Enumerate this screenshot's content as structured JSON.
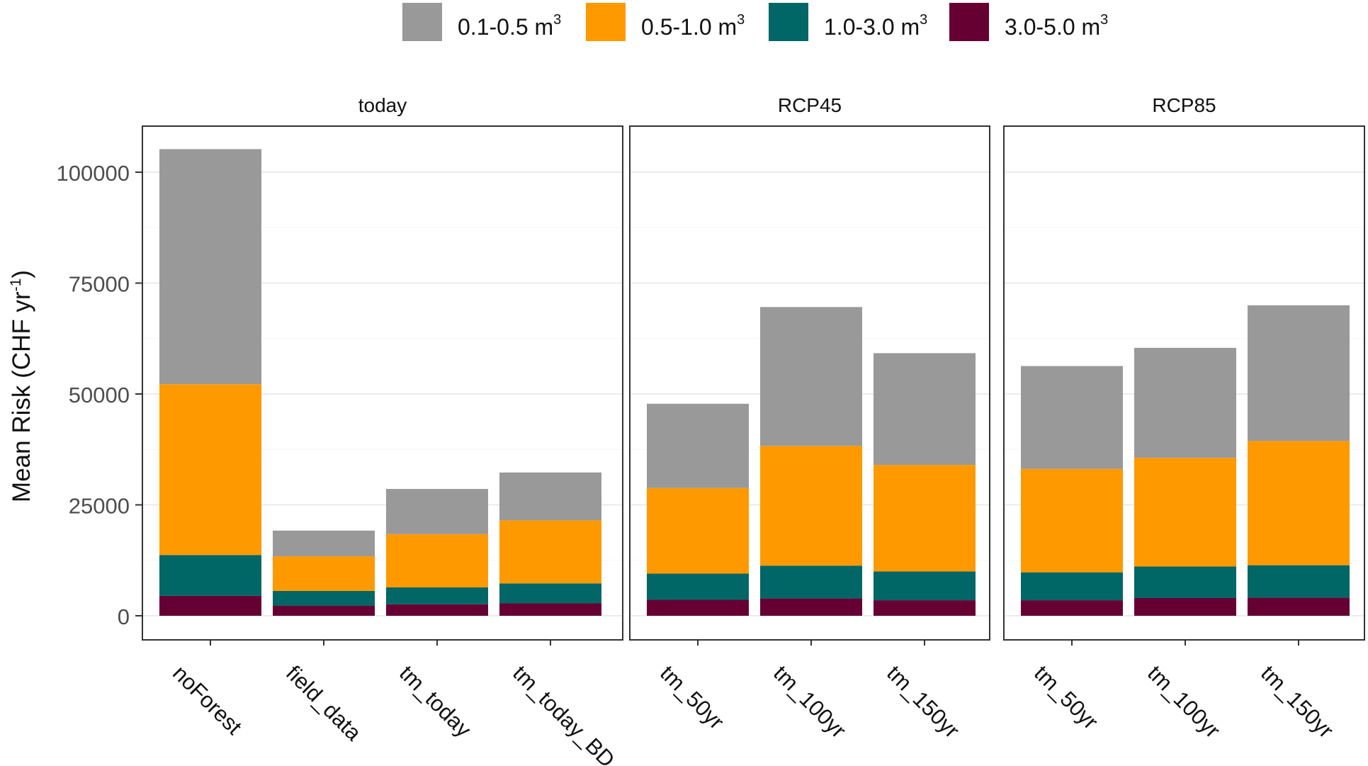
{
  "chart_data": {
    "type": "bar",
    "stacked": true,
    "ylabel": "Mean Risk (CHF yr",
    "ylabel_sup": "-1",
    "ylabel_close": ")",
    "ylim": [
      0,
      110000
    ],
    "yticks": [
      0,
      25000,
      50000,
      75000,
      100000
    ],
    "legend": {
      "position": "top",
      "unit_sup": "3",
      "items": [
        {
          "name": "0.1-0.5 m",
          "color": "#999999"
        },
        {
          "name": "0.5-1.0 m",
          "color": "#FF9900"
        },
        {
          "name": "1.0-3.0 m",
          "color": "#006666"
        },
        {
          "name": "3.0-5.0 m",
          "color": "#660033"
        }
      ]
    },
    "stack_order_bottom_to_top": [
      "3.0-5.0 m",
      "1.0-3.0 m",
      "0.5-1.0 m",
      "0.1-0.5 m"
    ],
    "panels": [
      {
        "title": "today",
        "categories": [
          "noForest",
          "field_data",
          "tm_today",
          "tm_today_BD"
        ],
        "series": [
          {
            "name": "3.0-5.0 m",
            "values": [
              4500,
              2300,
              2600,
              2800
            ]
          },
          {
            "name": "1.0-3.0 m",
            "values": [
              9200,
              3300,
              3800,
              4500
            ]
          },
          {
            "name": "0.5-1.0 m",
            "values": [
              38500,
              7800,
              12000,
              14200
            ]
          },
          {
            "name": "0.1-0.5 m",
            "values": [
              53000,
              5800,
              10200,
              10800
            ]
          }
        ]
      },
      {
        "title": "RCP45",
        "categories": [
          "tm_50yr",
          "tm_100yr",
          "tm_150yr"
        ],
        "series": [
          {
            "name": "3.0-5.0 m",
            "values": [
              3600,
              3900,
              3500
            ]
          },
          {
            "name": "1.0-3.0 m",
            "values": [
              5900,
              7400,
              6500
            ]
          },
          {
            "name": "0.5-1.0 m",
            "values": [
              19300,
              27000,
              24000
            ]
          },
          {
            "name": "0.1-0.5 m",
            "values": [
              19000,
              31300,
              25200
            ]
          }
        ]
      },
      {
        "title": "RCP85",
        "categories": [
          "tm_50yr",
          "tm_100yr",
          "tm_150yr"
        ],
        "series": [
          {
            "name": "3.0-5.0 m",
            "values": [
              3500,
              4000,
              4100
            ]
          },
          {
            "name": "1.0-3.0 m",
            "values": [
              6300,
              7100,
              7300
            ]
          },
          {
            "name": "0.5-1.0 m",
            "values": [
              23300,
              24500,
              28000
            ]
          },
          {
            "name": "0.1-0.5 m",
            "values": [
              23200,
              24800,
              30600
            ]
          }
        ]
      }
    ]
  }
}
